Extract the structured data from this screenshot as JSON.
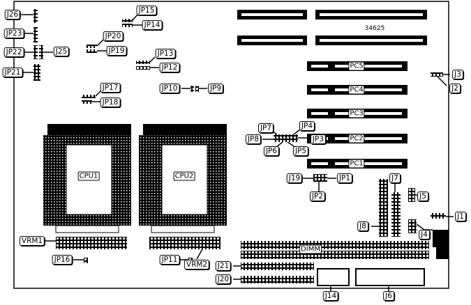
{
  "board": {
    "model_number": "34625",
    "slots": [
      "PC5",
      "PC4",
      "PC3",
      "PC2",
      "PC1"
    ],
    "cpus": [
      "CPU1",
      "CPU2"
    ],
    "memory": "DIMM",
    "labels": {
      "J26": "J26",
      "JP23": "JP23",
      "JP22": "JP22",
      "J25": "J25",
      "JP21": "JP21",
      "JP15": "JP15",
      "JP14": "JP14",
      "JP20": "JP20",
      "JP19": "JP19",
      "JP13": "JP13",
      "JP12": "JP12",
      "JP10": "JP10",
      "JP9": "JP9",
      "JP17": "JP17",
      "JP18": "JP18",
      "JP7": "JP7",
      "JP4": "JP4",
      "JP8": "JP8",
      "JP3": "JP3",
      "JP6": "JP6",
      "JP5": "JP5",
      "J19": "J19",
      "JP1": "JP1",
      "JP2": "JP2",
      "J7": "J7",
      "J5": "J5",
      "J1": "J1",
      "J8": "J8",
      "J4": "J4",
      "J3": "J3",
      "J2": "J2",
      "VRM1": "VRM1",
      "VRM2": "VRM2",
      "JP16": "JP16",
      "JP11": "JP11",
      "J21": "J21",
      "J20": "J20",
      "J14": "J14",
      "J6": "J6"
    }
  }
}
